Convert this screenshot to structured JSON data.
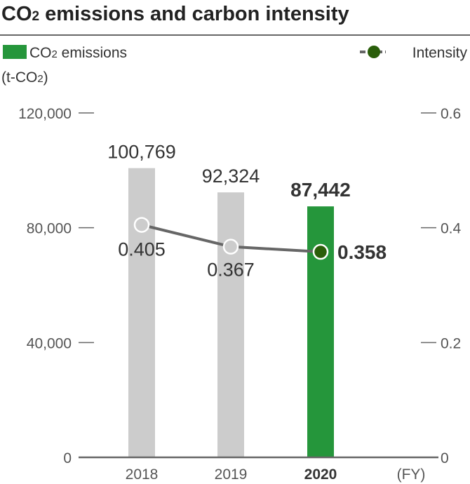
{
  "title": {
    "main": "CO",
    "sub": "2",
    "rest": " emissions and carbon intensity"
  },
  "legend": {
    "bar_label_main": "CO",
    "bar_label_sub": "2",
    "bar_label_rest": " emissions",
    "line_label": "Intensity"
  },
  "y_unit": {
    "a": "(t-CO",
    "sub": "2",
    "b": ")"
  },
  "x_unit": "(FY)",
  "colors": {
    "highlight_bar": "#25963b",
    "bar": "#cccccc",
    "line": "#666666",
    "point_highlight": "#2a5e0a",
    "point": "#cccccc"
  },
  "chart_data": {
    "type": "bar+line",
    "categories": [
      "2018",
      "2019",
      "2020"
    ],
    "highlight_category": "2020",
    "series": [
      {
        "name": "CO2 emissions",
        "type": "bar",
        "axis": "left",
        "values": [
          100769,
          92324,
          87442
        ],
        "labels": [
          "100,769",
          "92,324",
          "87,442"
        ]
      },
      {
        "name": "Intensity",
        "type": "line",
        "axis": "right",
        "values": [
          0.405,
          0.367,
          0.358
        ],
        "labels": [
          "0.405",
          "0.367",
          "0.358"
        ]
      }
    ],
    "left_axis": {
      "range": [
        0,
        120000
      ],
      "ticks": [
        "0",
        "40,000",
        "80,000",
        "120,000"
      ],
      "tick_values": [
        0,
        40000,
        80000,
        120000
      ]
    },
    "right_axis": {
      "range": [
        0,
        0.6
      ],
      "ticks": [
        "0",
        "0.2",
        "0.4",
        "0.6"
      ],
      "tick_values": [
        0,
        0.2,
        0.4,
        0.6
      ]
    },
    "grid": false,
    "legend": "top"
  }
}
